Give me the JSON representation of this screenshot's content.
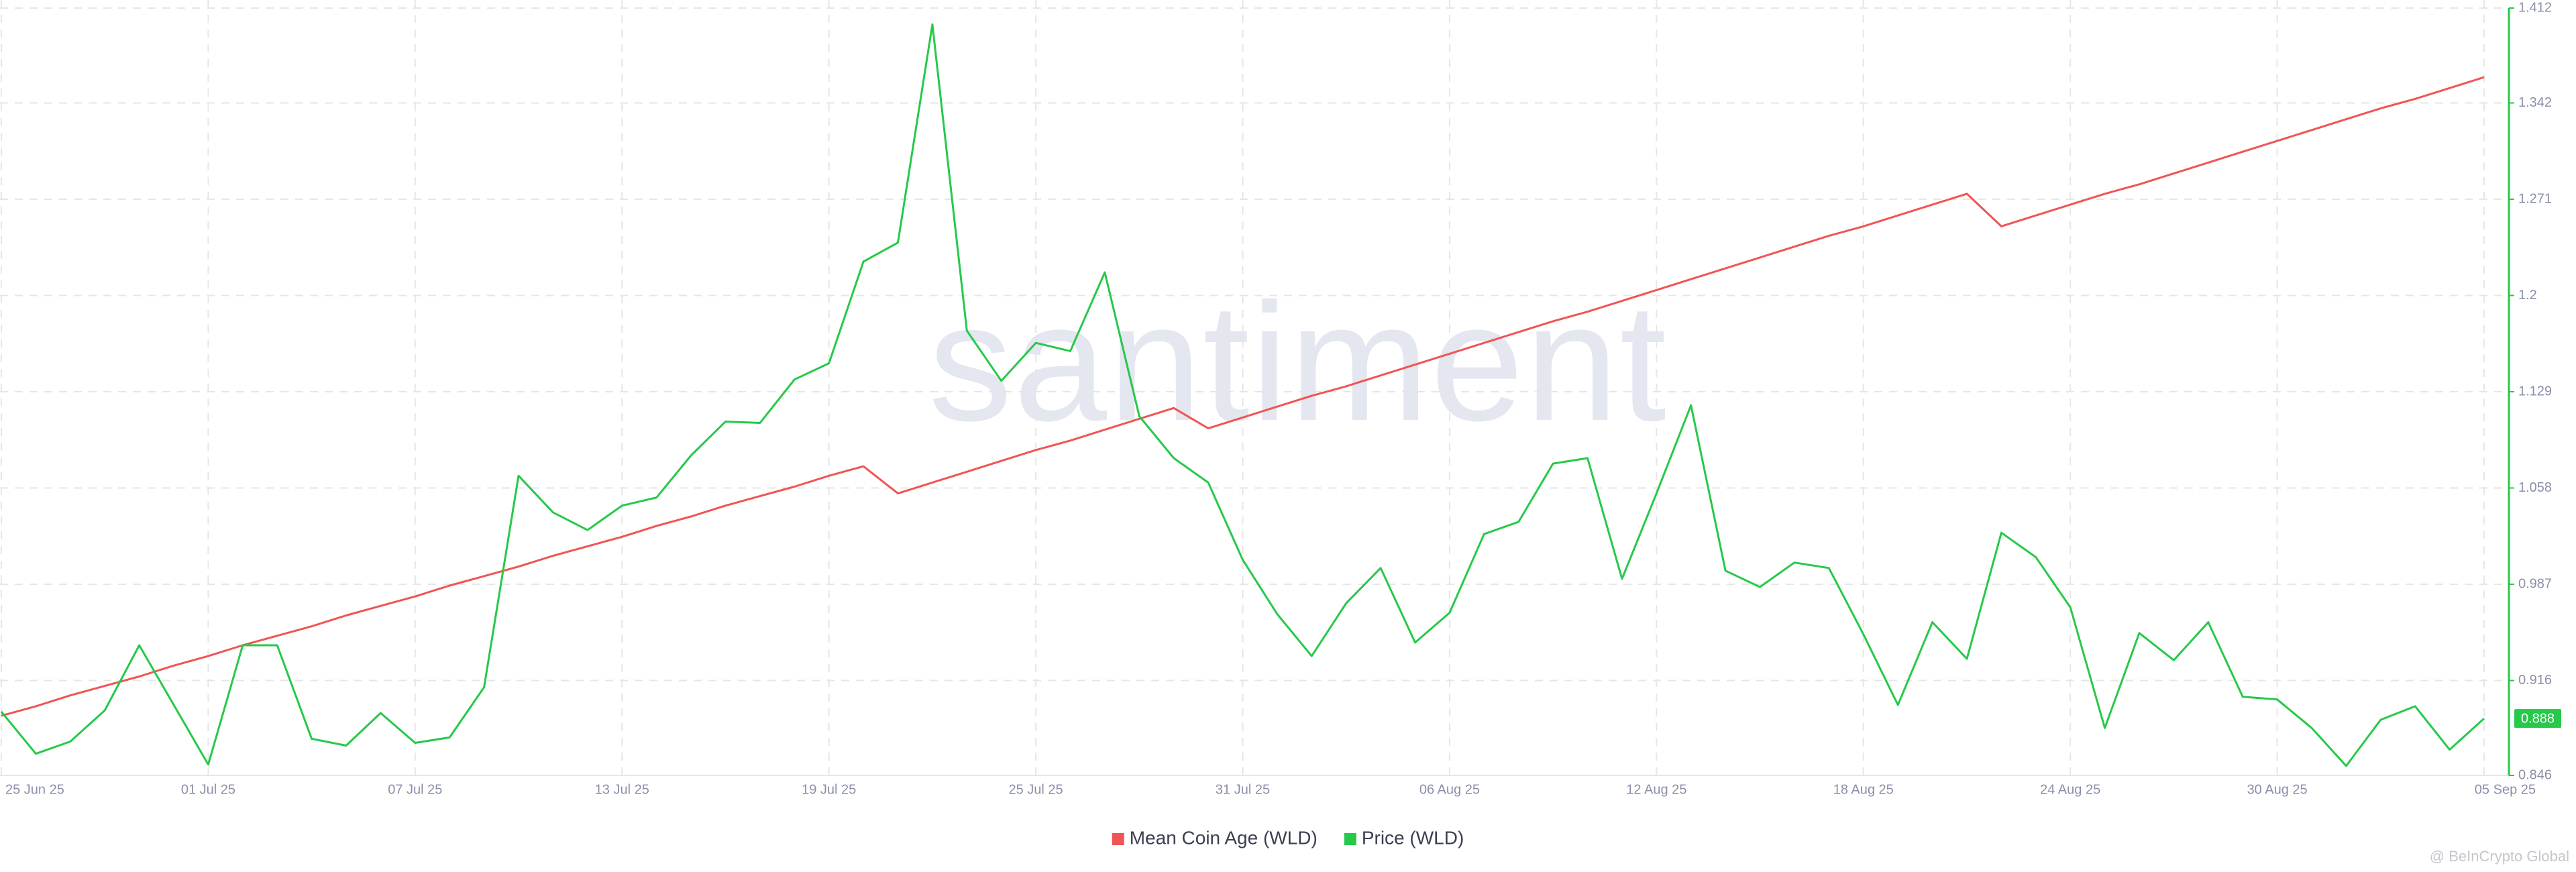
{
  "chart_data": {
    "type": "line",
    "watermark": "santiment",
    "credit": "@ BeInCrypto Global",
    "x": [
      "25 Jun 25",
      "26 Jun 25",
      "27 Jun 25",
      "28 Jun 25",
      "29 Jun 25",
      "30 Jun 25",
      "01 Jul 25",
      "02 Jul 25",
      "03 Jul 25",
      "04 Jul 25",
      "05 Jul 25",
      "06 Jul 25",
      "07 Jul 25",
      "08 Jul 25",
      "09 Jul 25",
      "10 Jul 25",
      "11 Jul 25",
      "12 Jul 25",
      "13 Jul 25",
      "14 Jul 25",
      "15 Jul 25",
      "16 Jul 25",
      "17 Jul 25",
      "18 Jul 25",
      "19 Jul 25",
      "20 Jul 25",
      "21 Jul 25",
      "22 Jul 25",
      "23 Jul 25",
      "24 Jul 25",
      "25 Jul 25",
      "26 Jul 25",
      "27 Jul 25",
      "28 Jul 25",
      "29 Jul 25",
      "30 Jul 25",
      "31 Jul 25",
      "01 Aug 25",
      "02 Aug 25",
      "03 Aug 25",
      "04 Aug 25",
      "05 Aug 25",
      "06 Aug 25",
      "07 Aug 25",
      "08 Aug 25",
      "09 Aug 25",
      "10 Aug 25",
      "11 Aug 25",
      "12 Aug 25",
      "13 Aug 25",
      "14 Aug 25",
      "15 Aug 25",
      "16 Aug 25",
      "17 Aug 25",
      "18 Aug 25",
      "19 Aug 25",
      "20 Aug 25",
      "21 Aug 25",
      "22 Aug 25",
      "23 Aug 25",
      "24 Aug 25",
      "25 Aug 25",
      "26 Aug 25",
      "27 Aug 25",
      "28 Aug 25",
      "29 Aug 25",
      "30 Aug 25",
      "31 Aug 25",
      "01 Sep 25",
      "02 Sep 25",
      "03 Sep 25",
      "04 Sep 25",
      "05 Sep 25"
    ],
    "xtick_every": 6,
    "series": [
      {
        "name": "Mean Coin Age (WLD)",
        "color": "#f05454",
        "values": [
          0.89,
          0.897,
          0.905,
          0.912,
          0.919,
          0.927,
          0.934,
          0.942,
          0.949,
          0.956,
          0.964,
          0.971,
          0.978,
          0.986,
          0.993,
          1.0,
          1.008,
          1.015,
          1.022,
          1.03,
          1.037,
          1.045,
          1.052,
          1.059,
          1.067,
          1.074,
          1.054,
          1.062,
          1.07,
          1.078,
          1.086,
          1.093,
          1.101,
          1.109,
          1.117,
          1.102,
          1.11,
          1.118,
          1.126,
          1.133,
          1.141,
          1.149,
          1.157,
          1.165,
          1.173,
          1.181,
          1.188,
          1.196,
          1.204,
          1.212,
          1.22,
          1.228,
          1.236,
          1.244,
          1.251,
          1.259,
          1.267,
          1.275,
          1.251,
          1.259,
          1.267,
          1.275,
          1.282,
          1.29,
          1.298,
          1.306,
          1.314,
          1.322,
          1.33,
          1.338,
          1.345,
          1.353,
          1.361
        ]
      },
      {
        "name": "Price (WLD)",
        "color": "#26c94a",
        "values": [
          0.893,
          0.862,
          0.871,
          0.894,
          0.942,
          0.898,
          0.854,
          0.942,
          0.942,
          0.873,
          0.868,
          0.892,
          0.87,
          0.874,
          0.911,
          1.067,
          1.04,
          1.027,
          1.045,
          1.051,
          1.082,
          1.107,
          1.106,
          1.138,
          1.15,
          1.225,
          1.239,
          1.4,
          1.174,
          1.137,
          1.165,
          1.159,
          1.217,
          1.111,
          1.08,
          1.062,
          1.005,
          0.965,
          0.934,
          0.973,
          0.999,
          0.944,
          0.966,
          1.024,
          1.033,
          1.076,
          1.08,
          0.991,
          1.054,
          1.119,
          0.997,
          0.985,
          1.003,
          0.999,
          0.95,
          0.898,
          0.959,
          0.932,
          1.025,
          1.007,
          0.97,
          0.881,
          0.951,
          0.931,
          0.959,
          0.904,
          0.902,
          0.881,
          0.853,
          0.887,
          0.897,
          0.865,
          0.888
        ]
      }
    ],
    "ylim": [
      0.846,
      1.412
    ],
    "yticks": [
      0.846,
      0.916,
      0.987,
      1.058,
      1.129,
      1.2,
      1.271,
      1.342,
      1.412
    ],
    "y_axis_side": "right",
    "grid": true,
    "legend": "bottom"
  }
}
